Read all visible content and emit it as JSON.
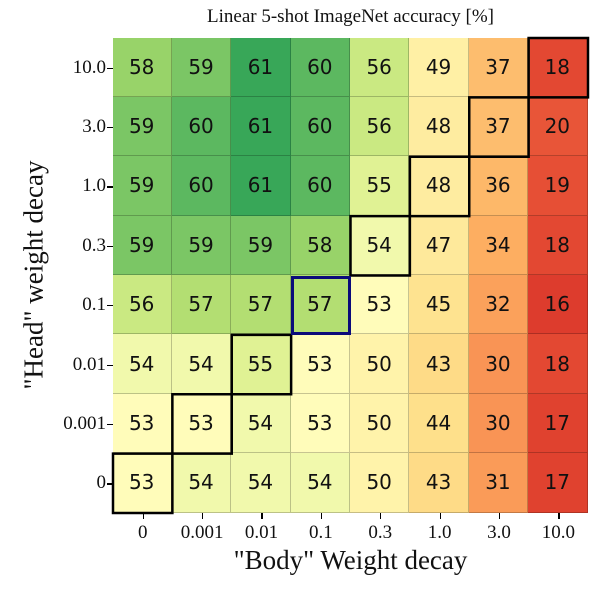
{
  "chart_data": {
    "type": "heatmap",
    "title": "Linear 5-shot ImageNet accuracy [%]",
    "xlabel": "\"Body\" Weight decay",
    "ylabel": "\"Head\" weight decay",
    "x_ticks": [
      "0",
      "0.001",
      "0.01",
      "0.1",
      "0.3",
      "1.0",
      "3.0",
      "10.0"
    ],
    "y_ticks": [
      "10.0",
      "3.0",
      "1.0",
      "0.3",
      "0.1",
      "0.01",
      "0.001",
      "0"
    ],
    "values": [
      [
        58,
        59,
        61,
        60,
        56,
        49,
        37,
        18
      ],
      [
        59,
        60,
        61,
        60,
        56,
        48,
        37,
        20
      ],
      [
        59,
        60,
        61,
        60,
        55,
        48,
        36,
        19
      ],
      [
        59,
        59,
        59,
        58,
        54,
        47,
        34,
        18
      ],
      [
        56,
        57,
        57,
        57,
        53,
        45,
        32,
        16
      ],
      [
        54,
        54,
        55,
        53,
        50,
        43,
        30,
        18
      ],
      [
        53,
        53,
        54,
        53,
        50,
        44,
        30,
        17
      ],
      [
        53,
        54,
        54,
        54,
        50,
        43,
        31,
        17
      ]
    ],
    "colormap": "RdYlGn",
    "highlight_cell": {
      "row_label": "0.1",
      "col_label": "0.1",
      "value": 57,
      "color": "#0b0b7a"
    },
    "diagonal_outline": "staircase along head-wd == body-wd diagonal",
    "grid": true,
    "legend": null
  },
  "colors": {
    "highlight": "#0b0b7a",
    "outline": "#000000"
  }
}
